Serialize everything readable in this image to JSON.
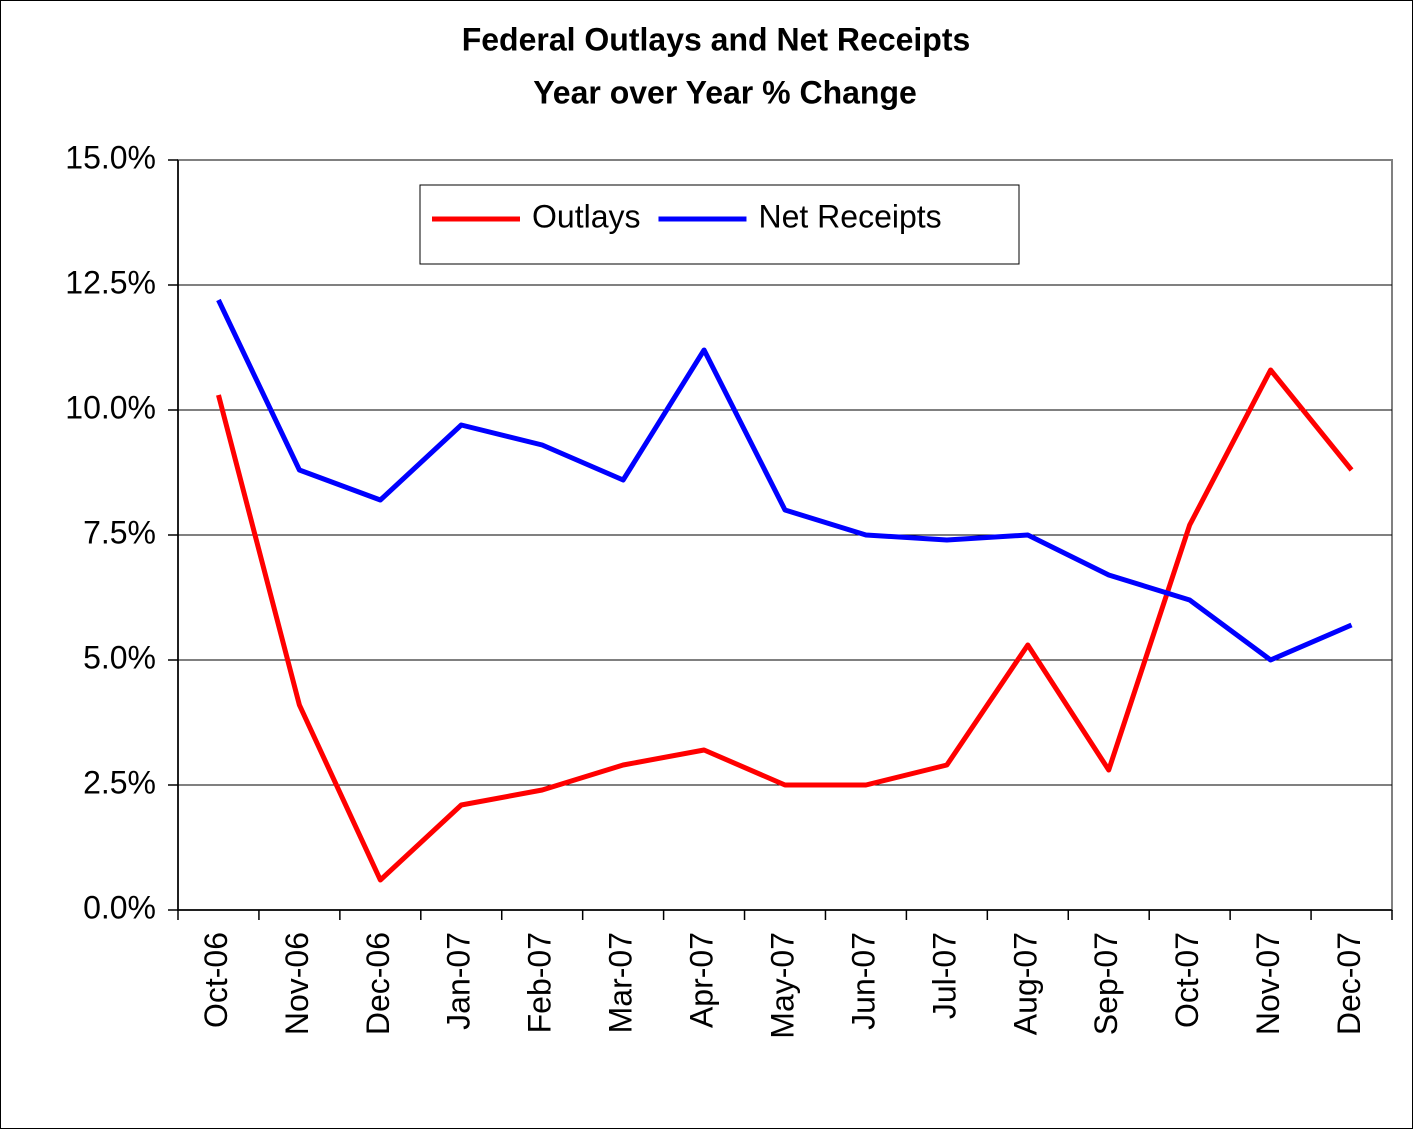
{
  "chart_data": {
    "type": "line",
    "title": "Federal Outlays and Net Receipts",
    "subtitle": "Year over Year % Change",
    "categories": [
      "Oct-06",
      "Nov-06",
      "Dec-06",
      "Jan-07",
      "Feb-07",
      "Mar-07",
      "Apr-07",
      "May-07",
      "Jun-07",
      "Jul-07",
      "Aug-07",
      "Sep-07",
      "Oct-07",
      "Nov-07",
      "Dec-07"
    ],
    "series": [
      {
        "name": "Outlays",
        "color": "#ff0000",
        "values": [
          10.3,
          4.1,
          0.6,
          2.1,
          2.4,
          2.9,
          3.2,
          2.5,
          2.5,
          2.9,
          5.3,
          2.8,
          7.7,
          10.8,
          8.8
        ]
      },
      {
        "name": "Net Receipts",
        "color": "#0000ff",
        "values": [
          12.2,
          8.8,
          8.2,
          9.7,
          9.3,
          8.6,
          11.2,
          8.0,
          7.5,
          7.4,
          7.5,
          6.7,
          6.2,
          5.0,
          5.7
        ]
      }
    ],
    "ylim": [
      0,
      15
    ],
    "yticks": [
      {
        "value": 0,
        "label": "0.0%"
      },
      {
        "value": 2.5,
        "label": "2.5%"
      },
      {
        "value": 5,
        "label": "5.0%"
      },
      {
        "value": 7.5,
        "label": "7.5%"
      },
      {
        "value": 10,
        "label": "10.0%"
      },
      {
        "value": 12.5,
        "label": "12.5%"
      },
      {
        "value": 15,
        "label": "15.0%"
      }
    ],
    "grid": true,
    "legend": "top"
  }
}
